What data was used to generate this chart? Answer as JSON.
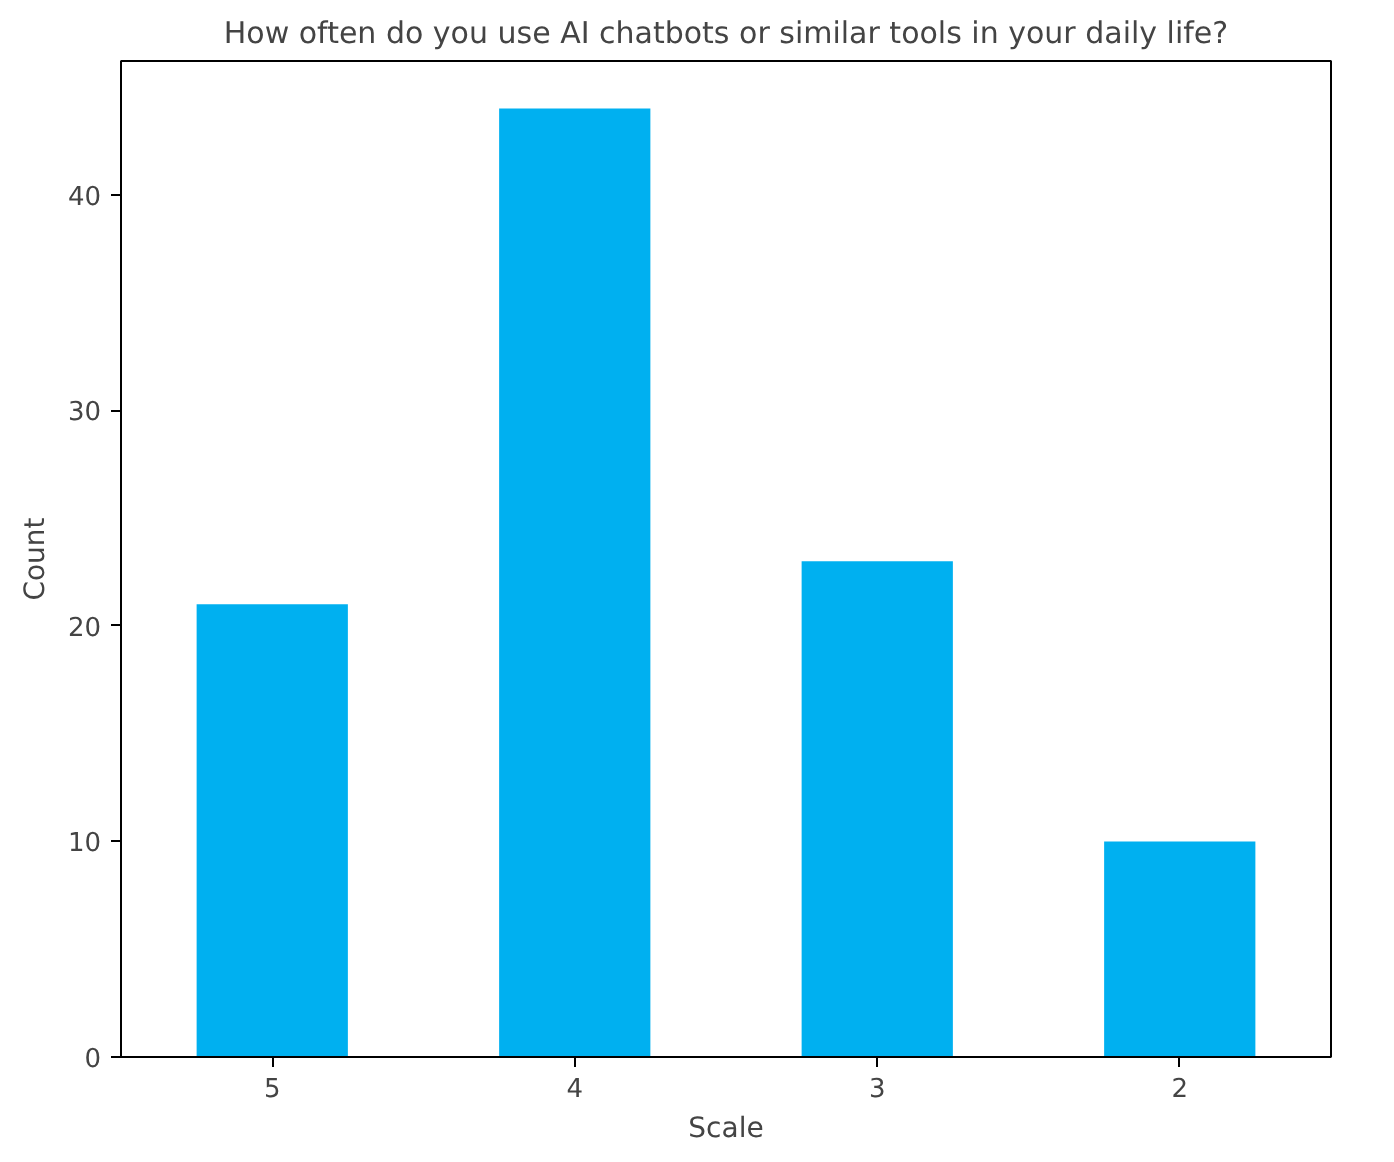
{
  "chart_data": {
    "type": "bar",
    "title": "How often do you use AI chatbots or similar tools in your daily life?",
    "xlabel": "Scale",
    "ylabel": "Count",
    "categories": [
      "5",
      "4",
      "3",
      "2"
    ],
    "values": [
      21,
      44,
      23,
      10
    ],
    "color": "#00b0f0",
    "ylim": [
      0,
      46.2
    ],
    "yticks": [
      0,
      10,
      20,
      30,
      40
    ],
    "grid": false
  }
}
